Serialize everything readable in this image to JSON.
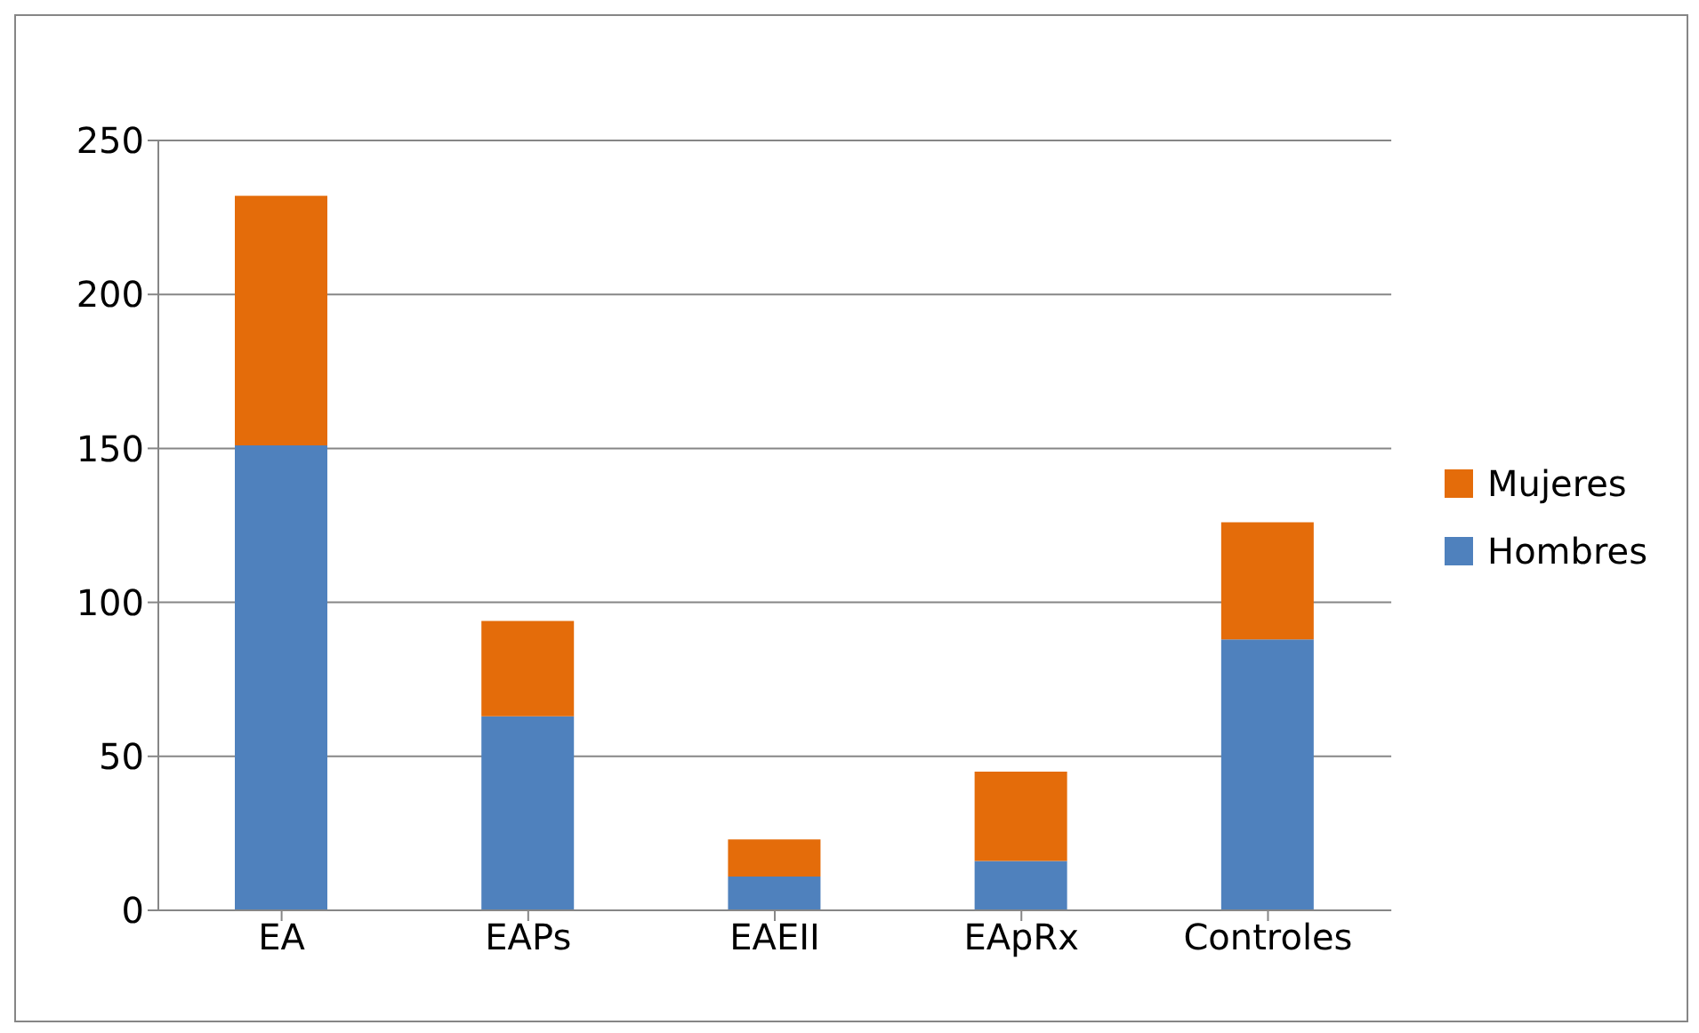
{
  "chart_data": {
    "type": "bar",
    "stacked": true,
    "categories": [
      "EA",
      "EAPs",
      "EAEII",
      "EApRx",
      "Controles"
    ],
    "series": [
      {
        "name": "Hombres",
        "color": "#4f81bd",
        "values": [
          151,
          63,
          11,
          16,
          88
        ]
      },
      {
        "name": "Mujeres",
        "color": "#e46c0a",
        "values": [
          81,
          31,
          12,
          29,
          38
        ]
      }
    ],
    "ylim": [
      0,
      250
    ],
    "yticks": [
      0,
      50,
      100,
      150,
      200,
      250
    ],
    "grid": "y",
    "legend": "right"
  }
}
